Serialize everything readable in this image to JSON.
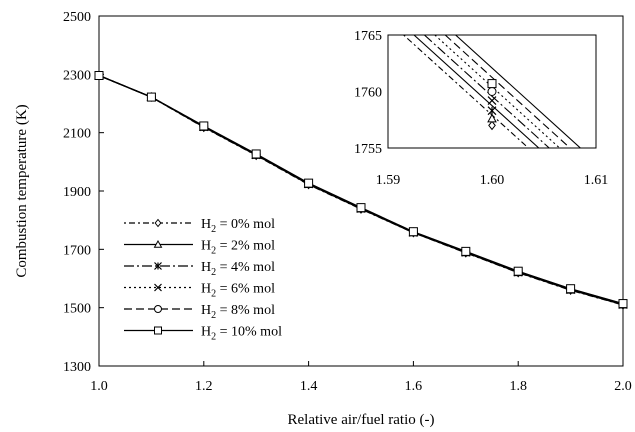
{
  "chart_data": [
    {
      "type": "line",
      "xlabel": "Relative air/fuel ratio (-)",
      "ylabel": "Combustion temperature (K)",
      "xlim": [
        1.0,
        2.0
      ],
      "ylim": [
        1300,
        2500
      ],
      "xticks": [
        "1.0",
        "1.2",
        "1.4",
        "1.6",
        "1.8",
        "2.0"
      ],
      "yticks": [
        "1300",
        "1500",
        "1700",
        "1900",
        "2100",
        "2300",
        "2500"
      ],
      "legend_position": "bottom-left",
      "x": [
        1.0,
        1.1,
        1.2,
        1.3,
        1.4,
        1.5,
        1.6,
        1.7,
        1.8,
        1.9,
        2.0
      ],
      "series": [
        {
          "name_prefix": "H",
          "name_sub": "2",
          "name_suffix": " = 0% mol",
          "marker": "diamond",
          "dash": "2,3,6,3",
          "values": [
            2296,
            2222,
            2118,
            2022,
            1922,
            1838,
            1757,
            1688,
            1620,
            1560,
            1509
          ]
        },
        {
          "name_prefix": "H",
          "name_sub": "2",
          "name_suffix": " = 2% mol",
          "marker": "triangle",
          "dash": "",
          "values": [
            2296,
            2222,
            2119,
            2023,
            1923,
            1839,
            1757.5,
            1689,
            1621,
            1561,
            1510
          ]
        },
        {
          "name_prefix": "H",
          "name_sub": "2",
          "name_suffix": " = 4% mol",
          "marker": "star",
          "dash": "10,3,2,3",
          "values": [
            2296,
            2222,
            2120,
            2024,
            1924,
            1840,
            1758,
            1690,
            1622,
            1562,
            1511
          ]
        },
        {
          "name_prefix": "H",
          "name_sub": "2",
          "name_suffix": " = 6% mol",
          "marker": "x",
          "dash": "2,3",
          "values": [
            2296,
            2222,
            2121,
            2025,
            1925,
            1841,
            1759,
            1691,
            1623,
            1563,
            1512
          ]
        },
        {
          "name_prefix": "H",
          "name_sub": "2",
          "name_suffix": " = 8% mol",
          "marker": "circle",
          "dash": "8,4",
          "values": [
            2296,
            2222,
            2122,
            2026,
            1926,
            1842,
            1760,
            1692,
            1624,
            1564,
            1513
          ]
        },
        {
          "name_prefix": "H",
          "name_sub": "2",
          "name_suffix": " = 10% mol",
          "marker": "square",
          "dash": "",
          "values": [
            2296,
            2222,
            2123,
            2027,
            1927,
            1843,
            1760.5,
            1693,
            1625,
            1565,
            1514
          ]
        }
      ]
    },
    {
      "type": "line",
      "inset": true,
      "xlim": [
        1.59,
        1.61
      ],
      "ylim": [
        1755,
        1765
      ],
      "xticks": [
        "1.59",
        "1.60",
        "1.61"
      ],
      "yticks": [
        "1755",
        "1760",
        "1765"
      ],
      "lines": [
        {
          "dash": "2,3,6,3",
          "x": [
            1.5915,
            1.6035
          ],
          "y": [
            1765,
            1755
          ]
        },
        {
          "dash": "",
          "x": [
            1.5925,
            1.6045
          ],
          "y": [
            1765,
            1755
          ]
        },
        {
          "dash": "10,3,2,3",
          "x": [
            1.5935,
            1.6055
          ],
          "y": [
            1765,
            1755
          ]
        },
        {
          "dash": "2,3",
          "x": [
            1.5945,
            1.6065
          ],
          "y": [
            1765,
            1755
          ]
        },
        {
          "dash": "8,4",
          "x": [
            1.5955,
            1.6075
          ],
          "y": [
            1765,
            1755
          ]
        },
        {
          "dash": "",
          "x": [
            1.5965,
            1.6085
          ],
          "y": [
            1765,
            1755
          ]
        }
      ],
      "markers": [
        {
          "marker": "diamond",
          "x": 1.6,
          "y": 1757.0
        },
        {
          "marker": "triangle",
          "x": 1.6,
          "y": 1757.6
        },
        {
          "marker": "star",
          "x": 1.6,
          "y": 1758.3
        },
        {
          "marker": "x",
          "x": 1.6,
          "y": 1759.2
        },
        {
          "marker": "circle",
          "x": 1.6,
          "y": 1760.0
        },
        {
          "marker": "square",
          "x": 1.6,
          "y": 1760.7
        }
      ]
    }
  ]
}
